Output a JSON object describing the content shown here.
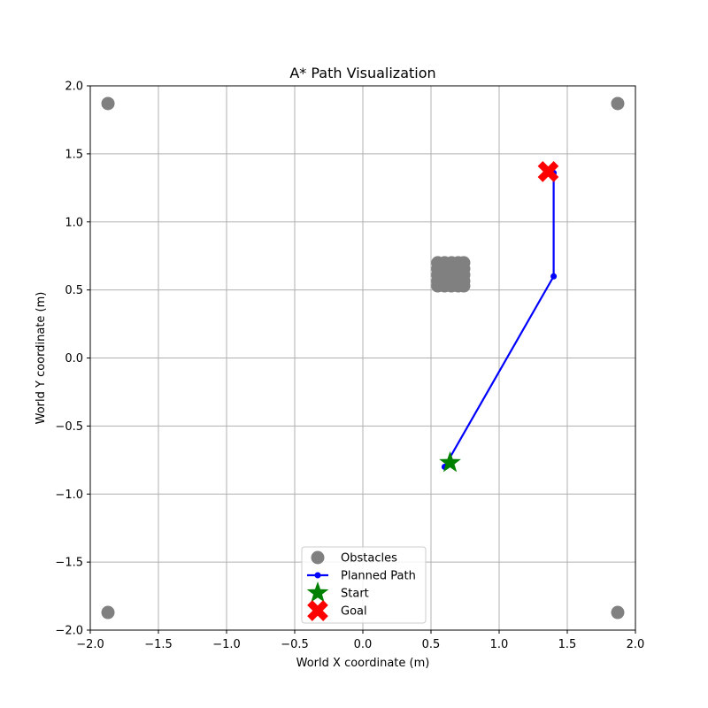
{
  "chart_data": {
    "type": "scatter",
    "title": "A* Path Visualization",
    "xlabel": "World X coordinate (m)",
    "ylabel": "World Y coordinate (m)",
    "xlim": [
      -2.0,
      2.0
    ],
    "ylim": [
      -2.0,
      2.0
    ],
    "grid": true,
    "legend_placement": "lower center",
    "x_ticks": [
      -2.0,
      -1.5,
      -1.0,
      -0.5,
      0.0,
      0.5,
      1.0,
      1.5,
      2.0
    ],
    "y_ticks": [
      -2.0,
      -1.5,
      -1.0,
      -0.5,
      0.0,
      0.5,
      1.0,
      1.5,
      2.0
    ],
    "x_tick_labels": [
      "−2.0",
      "−1.5",
      "−1.0",
      "−0.5",
      "0.0",
      "0.5",
      "1.0",
      "1.5",
      "2.0"
    ],
    "y_tick_labels": [
      "−2.0",
      "−1.5",
      "−1.0",
      "−0.5",
      "0.0",
      "0.5",
      "1.0",
      "1.5",
      "2.0"
    ],
    "series": [
      {
        "name": "Obstacles",
        "kind": "scatter",
        "marker": "circle",
        "color": "#808080",
        "points": [
          [
            -1.87,
            1.87
          ],
          [
            1.87,
            1.87
          ],
          [
            -1.87,
            -1.87
          ],
          [
            1.87,
            -1.87
          ],
          [
            0.55,
            0.7
          ],
          [
            0.6,
            0.7
          ],
          [
            0.65,
            0.7
          ],
          [
            0.7,
            0.7
          ],
          [
            0.74,
            0.7
          ],
          [
            0.55,
            0.655
          ],
          [
            0.6,
            0.655
          ],
          [
            0.65,
            0.655
          ],
          [
            0.7,
            0.655
          ],
          [
            0.74,
            0.655
          ],
          [
            0.55,
            0.61
          ],
          [
            0.6,
            0.61
          ],
          [
            0.65,
            0.61
          ],
          [
            0.7,
            0.61
          ],
          [
            0.74,
            0.61
          ],
          [
            0.55,
            0.565
          ],
          [
            0.6,
            0.565
          ],
          [
            0.65,
            0.565
          ],
          [
            0.7,
            0.565
          ],
          [
            0.74,
            0.565
          ],
          [
            0.55,
            0.53
          ],
          [
            0.6,
            0.53
          ],
          [
            0.65,
            0.53
          ],
          [
            0.7,
            0.53
          ],
          [
            0.74,
            0.53
          ]
        ]
      },
      {
        "name": "Planned Path",
        "kind": "line",
        "marker": "dot",
        "color": "#0000ff",
        "points": [
          [
            0.6,
            -0.8
          ],
          [
            1.4,
            0.6
          ],
          [
            1.4,
            1.36
          ]
        ]
      },
      {
        "name": "Start",
        "kind": "scatter",
        "marker": "star",
        "color": "#008000",
        "points": [
          [
            0.64,
            -0.77
          ]
        ]
      },
      {
        "name": "Goal",
        "kind": "scatter",
        "marker": "x",
        "color": "#ff0000",
        "points": [
          [
            1.36,
            1.37
          ]
        ]
      }
    ]
  }
}
